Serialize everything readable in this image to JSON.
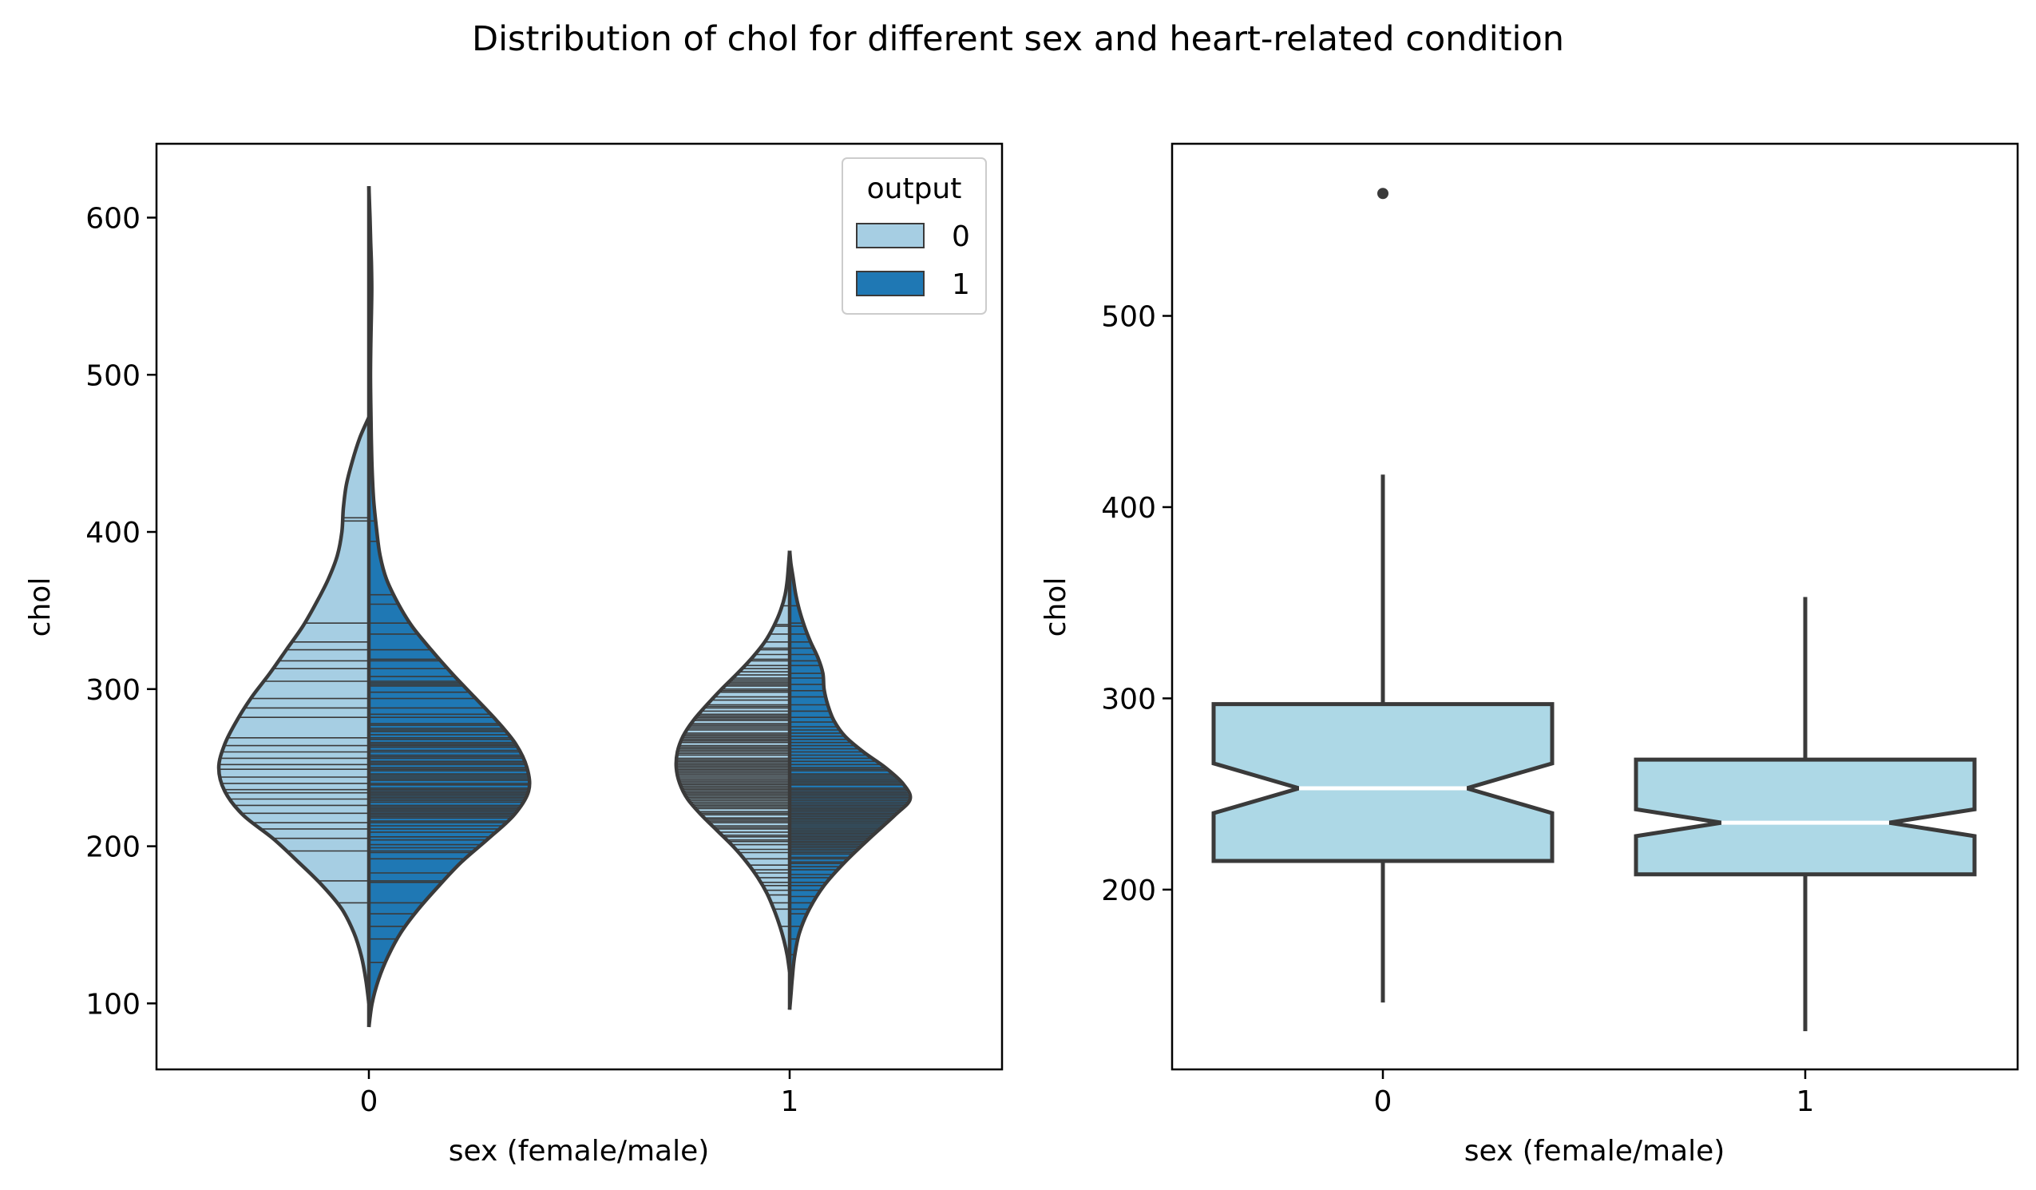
{
  "figure": {
    "title": "Distribution of chol for different sex and heart-related condition"
  },
  "chart_data": [
    {
      "type": "violin",
      "split": true,
      "inner": "stick",
      "xlabel": "sex (female/male)",
      "ylabel": "chol",
      "categories": [
        "0",
        "1"
      ],
      "ylim": [
        58,
        647
      ],
      "yticks": [
        100,
        200,
        300,
        400,
        500,
        600
      ],
      "grid": false,
      "legend": {
        "title": "output",
        "placement": "top-right",
        "entries": [
          {
            "label": "0",
            "color": "#a6cee3"
          },
          {
            "label": "1",
            "color": "#1f78b4"
          }
        ]
      },
      "violins": [
        {
          "category": "0",
          "output": "0",
          "side": "left",
          "color": "#a6cee3",
          "range": [
            100,
            473
          ],
          "profile": [
            [
              100,
              0.0
            ],
            [
              115,
              0.02
            ],
            [
              130,
              0.05
            ],
            [
              145,
              0.1
            ],
            [
              160,
              0.18
            ],
            [
              175,
              0.31
            ],
            [
              190,
              0.47
            ],
            [
              205,
              0.64
            ],
            [
              220,
              0.84
            ],
            [
              235,
              0.96
            ],
            [
              250,
              1.0
            ],
            [
              265,
              0.96
            ],
            [
              280,
              0.88
            ],
            [
              295,
              0.78
            ],
            [
              310,
              0.66
            ],
            [
              325,
              0.55
            ],
            [
              340,
              0.44
            ],
            [
              355,
              0.35
            ],
            [
              370,
              0.27
            ],
            [
              385,
              0.21
            ],
            [
              400,
              0.18
            ],
            [
              415,
              0.17
            ],
            [
              430,
              0.15
            ],
            [
              445,
              0.11
            ],
            [
              460,
              0.06
            ],
            [
              473,
              0.0
            ]
          ],
          "sticks": [
            164,
            178,
            197,
            205,
            211,
            215,
            221,
            226,
            230,
            234,
            236,
            240,
            244,
            249,
            252,
            256,
            260,
            264,
            269,
            282,
            288,
            294,
            305,
            313,
            318,
            325,
            330,
            342,
            407,
            409
          ]
        },
        {
          "category": "0",
          "output": "1",
          "side": "right",
          "color": "#1f78b4",
          "range": [
            85,
            620
          ],
          "profile": [
            [
              85,
              0.0
            ],
            [
              100,
              0.02
            ],
            [
              115,
              0.06
            ],
            [
              130,
              0.12
            ],
            [
              145,
              0.2
            ],
            [
              160,
              0.31
            ],
            [
              175,
              0.44
            ],
            [
              190,
              0.58
            ],
            [
              205,
              0.75
            ],
            [
              220,
              0.91
            ],
            [
              235,
              1.0
            ],
            [
              250,
              0.99
            ],
            [
              265,
              0.92
            ],
            [
              280,
              0.8
            ],
            [
              295,
              0.66
            ],
            [
              310,
              0.52
            ],
            [
              325,
              0.39
            ],
            [
              340,
              0.27
            ],
            [
              355,
              0.18
            ],
            [
              370,
              0.11
            ],
            [
              385,
              0.07
            ],
            [
              400,
              0.05
            ],
            [
              420,
              0.03
            ],
            [
              440,
              0.02
            ],
            [
              460,
              0.015
            ],
            [
              480,
              0.012
            ],
            [
              500,
              0.01
            ],
            [
              520,
              0.012
            ],
            [
              540,
              0.016
            ],
            [
              555,
              0.018
            ],
            [
              570,
              0.016
            ],
            [
              585,
              0.011
            ],
            [
              600,
              0.007
            ],
            [
              620,
              0.0
            ]
          ],
          "sticks": [
            126,
            141,
            149,
            157,
            164,
            177,
            178,
            183,
            192,
            196,
            197,
            199,
            201,
            204,
            206,
            209,
            211,
            213,
            215,
            216,
            218,
            219,
            220,
            221,
            222,
            223,
            224,
            225,
            226,
            228,
            229,
            230,
            231,
            232,
            233,
            234,
            235,
            236,
            237,
            239,
            240,
            242,
            243,
            244,
            245,
            246,
            248,
            249,
            250,
            252,
            253,
            254,
            256,
            257,
            258,
            260,
            261,
            263,
            264,
            265,
            266,
            268,
            269,
            271,
            273,
            274,
            275,
            277,
            278,
            282,
            284,
            288,
            294,
            298,
            302,
            303,
            304,
            305,
            308,
            313,
            318,
            319,
            325,
            335,
            342,
            354,
            360,
            394,
            407,
            564
          ]
        },
        {
          "category": "1",
          "output": "0",
          "side": "left",
          "color": "#a6cee3",
          "range": [
            120,
            388
          ],
          "profile": [
            [
              120,
              0.0
            ],
            [
              130,
              0.02
            ],
            [
              140,
              0.05
            ],
            [
              150,
              0.09
            ],
            [
              160,
              0.14
            ],
            [
              170,
              0.2
            ],
            [
              180,
              0.28
            ],
            [
              190,
              0.38
            ],
            [
              200,
              0.5
            ],
            [
              210,
              0.64
            ],
            [
              220,
              0.78
            ],
            [
              230,
              0.9
            ],
            [
              240,
              0.97
            ],
            [
              250,
              1.0
            ],
            [
              260,
              0.99
            ],
            [
              270,
              0.94
            ],
            [
              280,
              0.85
            ],
            [
              290,
              0.73
            ],
            [
              300,
              0.6
            ],
            [
              310,
              0.46
            ],
            [
              320,
              0.33
            ],
            [
              330,
              0.22
            ],
            [
              340,
              0.14
            ],
            [
              350,
              0.08
            ],
            [
              360,
              0.04
            ],
            [
              370,
              0.02
            ],
            [
              388,
              0.0
            ]
          ],
          "sticks": [
            131,
            149,
            160,
            164,
            169,
            172,
            175,
            177,
            180,
            183,
            185,
            188,
            192,
            196,
            198,
            201,
            203,
            204,
            206,
            207,
            209,
            211,
            212,
            213,
            215,
            216,
            217,
            218,
            220,
            221,
            222,
            224,
            225,
            226,
            227,
            228,
            229,
            230,
            231,
            232,
            233,
            234,
            235,
            236,
            237,
            238,
            239,
            240,
            241,
            242,
            243,
            244,
            245,
            246,
            247,
            248,
            249,
            250,
            251,
            252,
            253,
            254,
            255,
            256,
            258,
            259,
            260,
            261,
            262,
            263,
            264,
            266,
            267,
            268,
            269,
            270,
            271,
            272,
            274,
            275,
            276,
            277,
            278,
            280,
            281,
            282,
            283,
            284,
            286,
            288,
            289,
            290,
            293,
            295,
            298,
            299,
            300,
            302,
            303,
            304,
            305,
            306,
            307,
            309,
            311,
            313,
            315,
            318,
            319,
            322,
            325,
            326,
            330,
            335,
            340,
            341,
            353
          ]
        },
        {
          "category": "1",
          "output": "1",
          "side": "right",
          "color": "#1f78b4",
          "range": [
            96,
            388
          ],
          "profile": [
            [
              96,
              0.0
            ],
            [
              105,
              0.01
            ],
            [
              115,
              0.02
            ],
            [
              130,
              0.04
            ],
            [
              145,
              0.08
            ],
            [
              160,
              0.16
            ],
            [
              175,
              0.28
            ],
            [
              190,
              0.45
            ],
            [
              205,
              0.65
            ],
            [
              220,
              0.86
            ],
            [
              230,
              0.98
            ],
            [
              240,
              0.92
            ],
            [
              250,
              0.78
            ],
            [
              260,
              0.6
            ],
            [
              270,
              0.45
            ],
            [
              280,
              0.36
            ],
            [
              290,
              0.31
            ],
            [
              300,
              0.28
            ],
            [
              310,
              0.27
            ],
            [
              320,
              0.23
            ],
            [
              330,
              0.17
            ],
            [
              340,
              0.12
            ],
            [
              350,
              0.08
            ],
            [
              360,
              0.05
            ],
            [
              370,
              0.03
            ],
            [
              380,
              0.01
            ],
            [
              388,
              0.0
            ]
          ],
          "sticks": [
            131,
            141,
            149,
            157,
            160,
            164,
            168,
            172,
            175,
            177,
            180,
            182,
            185,
            187,
            189,
            190,
            192,
            193,
            195,
            196,
            197,
            198,
            199,
            200,
            201,
            202,
            203,
            204,
            205,
            206,
            207,
            208,
            209,
            210,
            211,
            212,
            213,
            214,
            215,
            216,
            217,
            218,
            219,
            220,
            221,
            222,
            223,
            224,
            225,
            226,
            227,
            228,
            229,
            230,
            231,
            232,
            233,
            234,
            235,
            236,
            237,
            239,
            240,
            241,
            242,
            243,
            244,
            245,
            246,
            248,
            249,
            250,
            252,
            254,
            256,
            258,
            260,
            262,
            264,
            266,
            268,
            270,
            272,
            274,
            276,
            279,
            282,
            286,
            290,
            295,
            299,
            303,
            307,
            310,
            315,
            318,
            322,
            326,
            330,
            335,
            340,
            342,
            353
          ]
        }
      ]
    },
    {
      "type": "boxplot",
      "notch": true,
      "xlabel": "sex (female/male)",
      "ylabel": "chol",
      "categories": [
        "0",
        "1"
      ],
      "ylim": [
        106,
        590
      ],
      "yticks": [
        200,
        300,
        400,
        500
      ],
      "grid": false,
      "box_color": "#add8e6",
      "median_color": "#ffffff",
      "boxes": [
        {
          "category": "0",
          "whisker_low": 141,
          "q1": 215,
          "notch_low": 240,
          "median": 253,
          "notch_high": 266,
          "q3": 297,
          "whisker_high": 417,
          "outliers": [
            564
          ]
        },
        {
          "category": "1",
          "whisker_low": 126,
          "q1": 208,
          "notch_low": 228,
          "median": 235,
          "notch_high": 242,
          "q3": 268,
          "whisker_high": 353,
          "outliers": []
        }
      ]
    }
  ]
}
